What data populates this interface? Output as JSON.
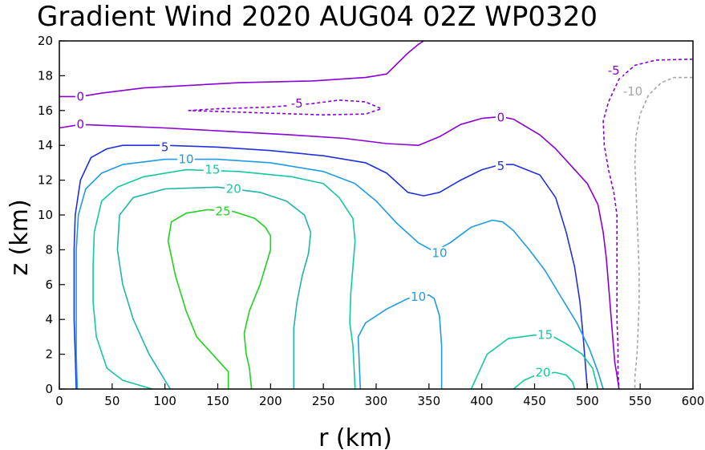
{
  "chart_data": {
    "type": "contour",
    "title": "Gradient Wind 2020 AUG04 02Z  WP0320",
    "xlabel": "r (km)",
    "ylabel": "z (km)",
    "xlim": [
      0,
      600
    ],
    "ylim": [
      0,
      20
    ],
    "x_ticks": [
      0,
      50,
      100,
      150,
      200,
      250,
      300,
      350,
      400,
      450,
      500,
      550,
      600
    ],
    "y_ticks": [
      0,
      2,
      4,
      6,
      8,
      10,
      12,
      14,
      16,
      18,
      20
    ],
    "grid": false,
    "contours": [
      {
        "level": 0,
        "color": "#8a00d4",
        "dashed": false,
        "points": [
          [
            0,
            16.8
          ],
          [
            20,
            16.8
          ],
          [
            40,
            17.0
          ],
          [
            80,
            17.3
          ],
          [
            110,
            17.4
          ],
          [
            170,
            17.6
          ],
          [
            240,
            17.7
          ],
          [
            290,
            17.9
          ],
          [
            300,
            18.0
          ],
          [
            310,
            18.1
          ],
          [
            330,
            19.3
          ],
          [
            340,
            19.8
          ],
          [
            345,
            20.0
          ]
        ]
      },
      {
        "level": 0,
        "color": "#8a00d4",
        "dashed": false,
        "points": [
          [
            0,
            15.0
          ],
          [
            20,
            15.2
          ],
          [
            60,
            15.1
          ],
          [
            100,
            15.0
          ],
          [
            160,
            14.8
          ],
          [
            220,
            14.6
          ],
          [
            270,
            14.4
          ],
          [
            310,
            14.1
          ],
          [
            340,
            14.0
          ],
          [
            360,
            14.5
          ],
          [
            380,
            15.2
          ],
          [
            400,
            15.55
          ],
          [
            418,
            15.65
          ],
          [
            430,
            15.5
          ],
          [
            455,
            14.6
          ],
          [
            470,
            13.8
          ],
          [
            485,
            12.8
          ],
          [
            500,
            11.8
          ],
          [
            510,
            10.6
          ],
          [
            515,
            9.0
          ],
          [
            518,
            7.5
          ],
          [
            520,
            6.0
          ],
          [
            522,
            4.5
          ],
          [
            524,
            3.0
          ],
          [
            526,
            1.5
          ],
          [
            528,
            0.8
          ],
          [
            530,
            0.0
          ]
        ]
      },
      {
        "level": -5,
        "color": "#8a00d4",
        "dashed": true,
        "points": [
          [
            122,
            16.0
          ],
          [
            150,
            16.1
          ],
          [
            200,
            16.2
          ],
          [
            240,
            16.4
          ],
          [
            265,
            16.6
          ],
          [
            290,
            16.5
          ],
          [
            305,
            16.1
          ],
          [
            290,
            15.8
          ],
          [
            250,
            15.75
          ],
          [
            200,
            15.85
          ],
          [
            150,
            15.95
          ],
          [
            122,
            16.0
          ]
        ]
      },
      {
        "level": -5,
        "color": "#8a00d4",
        "dashed": true,
        "points": [
          [
            600,
            18.95
          ],
          [
            565,
            18.9
          ],
          [
            545,
            18.6
          ],
          [
            530,
            17.8
          ],
          [
            520,
            16.5
          ],
          [
            515,
            15.4
          ],
          [
            516,
            14.0
          ],
          [
            520,
            12.6
          ],
          [
            525,
            11.3
          ],
          [
            528,
            10.0
          ],
          [
            528,
            8.5
          ],
          [
            528,
            7.0
          ],
          [
            528,
            5.5
          ],
          [
            528,
            4.0
          ],
          [
            529,
            2.5
          ],
          [
            529,
            1.0
          ],
          [
            530,
            0.0
          ]
        ]
      },
      {
        "level": -10,
        "color": "#a6a6a6",
        "dashed": true,
        "points": [
          [
            600,
            17.9
          ],
          [
            582,
            17.9
          ],
          [
            570,
            17.6
          ],
          [
            558,
            16.9
          ],
          [
            550,
            15.8
          ],
          [
            546,
            14.5
          ],
          [
            545,
            13.0
          ],
          [
            546,
            11.5
          ],
          [
            547,
            10.0
          ],
          [
            548,
            8.5
          ],
          [
            549,
            6.8
          ],
          [
            549,
            5.0
          ],
          [
            548,
            3.3
          ],
          [
            547,
            2.0
          ],
          [
            545,
            0.7
          ],
          [
            545,
            0.0
          ]
        ]
      },
      {
        "level": 5,
        "color": "#1e32dc",
        "dashed": false,
        "points": [
          [
            16,
            0.0
          ],
          [
            15,
            2.0
          ],
          [
            14,
            4.0
          ],
          [
            14,
            6.0
          ],
          [
            14,
            8.0
          ],
          [
            15,
            10.0
          ],
          [
            20,
            12.0
          ],
          [
            30,
            13.3
          ],
          [
            45,
            13.8
          ],
          [
            60,
            14.0
          ],
          [
            100,
            14.0
          ],
          [
            150,
            13.9
          ],
          [
            200,
            13.7
          ],
          [
            250,
            13.4
          ],
          [
            290,
            13.0
          ],
          [
            310,
            12.4
          ],
          [
            330,
            11.3
          ],
          [
            345,
            11.1
          ],
          [
            360,
            11.3
          ],
          [
            380,
            12.0
          ],
          [
            400,
            12.6
          ],
          [
            418,
            12.9
          ],
          [
            430,
            12.9
          ],
          [
            455,
            12.3
          ],
          [
            470,
            11.0
          ],
          [
            480,
            9.0
          ],
          [
            488,
            7.0
          ],
          [
            493,
            5.0
          ],
          [
            496,
            3.0
          ],
          [
            498,
            1.5
          ],
          [
            500,
            0.0
          ]
        ]
      },
      {
        "level": 10,
        "color": "#1e9be6",
        "dashed": false,
        "points": [
          [
            17,
            0.0
          ],
          [
            16,
            2.0
          ],
          [
            16,
            4.0
          ],
          [
            16,
            6.0
          ],
          [
            16,
            8.0
          ],
          [
            18,
            10.0
          ],
          [
            25,
            11.5
          ],
          [
            40,
            12.4
          ],
          [
            60,
            12.9
          ],
          [
            100,
            13.2
          ],
          [
            150,
            13.2
          ],
          [
            200,
            13.0
          ],
          [
            250,
            12.5
          ],
          [
            280,
            11.8
          ],
          [
            300,
            10.8
          ],
          [
            320,
            9.5
          ],
          [
            340,
            8.4
          ],
          [
            355,
            7.9
          ],
          [
            370,
            8.4
          ],
          [
            390,
            9.3
          ],
          [
            410,
            9.7
          ],
          [
            420,
            9.6
          ],
          [
            430,
            9.1
          ],
          [
            445,
            8.0
          ],
          [
            460,
            6.8
          ],
          [
            475,
            5.3
          ],
          [
            490,
            3.8
          ],
          [
            502,
            2.3
          ],
          [
            510,
            1.0
          ],
          [
            515,
            0.0
          ]
        ]
      },
      {
        "level": 10,
        "color": "#1e9be6",
        "dashed": false,
        "points": [
          [
            285,
            0.0
          ],
          [
            284,
            1.5
          ],
          [
            283,
            3.0
          ],
          [
            290,
            3.8
          ],
          [
            310,
            4.6
          ],
          [
            330,
            5.2
          ],
          [
            350,
            5.4
          ],
          [
            355,
            5.2
          ],
          [
            360,
            4.2
          ],
          [
            362,
            2.5
          ],
          [
            362,
            1.0
          ],
          [
            362,
            0.0
          ]
        ]
      },
      {
        "level": 15,
        "color": "#14c8a0",
        "dashed": false,
        "points": [
          [
            88,
            0.0
          ],
          [
            60,
            0.5
          ],
          [
            45,
            1.2
          ],
          [
            35,
            3.0
          ],
          [
            32,
            5.0
          ],
          [
            32,
            7.0
          ],
          [
            33,
            9.0
          ],
          [
            40,
            10.8
          ],
          [
            55,
            11.6
          ],
          [
            80,
            12.2
          ],
          [
            120,
            12.6
          ],
          [
            170,
            12.5
          ],
          [
            220,
            12.2
          ],
          [
            250,
            11.8
          ],
          [
            265,
            11.0
          ],
          [
            278,
            9.8
          ],
          [
            280,
            8.5
          ],
          [
            278,
            7.0
          ],
          [
            276,
            5.5
          ],
          [
            275,
            3.8
          ],
          [
            278,
            2.5
          ],
          [
            279,
            1.3
          ],
          [
            280,
            0.0
          ]
        ]
      },
      {
        "level": 15,
        "color": "#14c8a0",
        "dashed": false,
        "points": [
          [
            390,
            0.0
          ],
          [
            405,
            2.0
          ],
          [
            425,
            2.9
          ],
          [
            450,
            3.1
          ],
          [
            468,
            3.0
          ],
          [
            480,
            2.6
          ],
          [
            495,
            2.0
          ],
          [
            505,
            1.2
          ],
          [
            510,
            0.0
          ]
        ]
      },
      {
        "level": 20,
        "color": "#1eb4aa",
        "dashed": false,
        "points": [
          [
            105,
            0.0
          ],
          [
            85,
            2.0
          ],
          [
            70,
            4.0
          ],
          [
            60,
            6.0
          ],
          [
            55,
            8.0
          ],
          [
            57,
            10.0
          ],
          [
            70,
            11.0
          ],
          [
            100,
            11.5
          ],
          [
            150,
            11.6
          ],
          [
            190,
            11.3
          ],
          [
            215,
            10.8
          ],
          [
            232,
            10.0
          ],
          [
            238,
            9.0
          ],
          [
            236,
            7.8
          ],
          [
            230,
            6.5
          ],
          [
            225,
            5.0
          ],
          [
            222,
            3.5
          ],
          [
            222,
            2.5
          ],
          [
            222,
            1.0
          ],
          [
            222,
            0.0
          ]
        ]
      },
      {
        "level": 20,
        "color": "#14c8a0",
        "dashed": false,
        "points": [
          [
            430,
            0.0
          ],
          [
            440,
            0.5
          ],
          [
            455,
            0.9
          ],
          [
            470,
            0.95
          ],
          [
            480,
            0.8
          ],
          [
            486,
            0.4
          ],
          [
            488,
            0.0
          ]
        ]
      },
      {
        "level": 25,
        "color": "#1ed21e",
        "dashed": false,
        "points": [
          [
            160,
            0.0
          ],
          [
            160,
            1.0
          ],
          [
            145,
            2.0
          ],
          [
            130,
            3.0
          ],
          [
            120,
            4.5
          ],
          [
            110,
            6.5
          ],
          [
            103,
            8.5
          ],
          [
            106,
            9.6
          ],
          [
            120,
            10.1
          ],
          [
            140,
            10.3
          ],
          [
            165,
            10.2
          ],
          [
            185,
            9.8
          ],
          [
            195,
            9.3
          ],
          [
            200,
            8.8
          ],
          [
            200,
            8.0
          ],
          [
            195,
            7.0
          ],
          [
            190,
            6.0
          ],
          [
            180,
            4.5
          ],
          [
            175,
            3.2
          ],
          [
            177,
            2.0
          ],
          [
            180,
            1.2
          ],
          [
            182,
            0.0
          ]
        ]
      }
    ],
    "contour_labels": [
      {
        "text": "0",
        "x": 20,
        "y": 16.8,
        "color": "#8a00d4"
      },
      {
        "text": "0",
        "x": 20,
        "y": 15.2,
        "color": "#8a00d4"
      },
      {
        "text": "-5",
        "x": 225,
        "y": 16.4,
        "color": "#8a00d4"
      },
      {
        "text": "0",
        "x": 418,
        "y": 15.6,
        "color": "#8a00d4"
      },
      {
        "text": "-5",
        "x": 525,
        "y": 18.3,
        "color": "#8a00d4"
      },
      {
        "text": "-10",
        "x": 543,
        "y": 17.1,
        "color": "#a6a6a6"
      },
      {
        "text": "5",
        "x": 100,
        "y": 13.9,
        "color": "#1e32dc"
      },
      {
        "text": "5",
        "x": 418,
        "y": 12.8,
        "color": "#1e32dc"
      },
      {
        "text": "10",
        "x": 120,
        "y": 13.2,
        "color": "#1e9be6"
      },
      {
        "text": "10",
        "x": 360,
        "y": 7.8,
        "color": "#1e9be6"
      },
      {
        "text": "10",
        "x": 340,
        "y": 5.3,
        "color": "#1e9be6"
      },
      {
        "text": "15",
        "x": 145,
        "y": 12.6,
        "color": "#14c8a0"
      },
      {
        "text": "15",
        "x": 460,
        "y": 3.1,
        "color": "#14c8a0"
      },
      {
        "text": "20",
        "x": 165,
        "y": 11.5,
        "color": "#14c8a0"
      },
      {
        "text": "20",
        "x": 458,
        "y": 0.95,
        "color": "#14c8a0"
      },
      {
        "text": "25",
        "x": 155,
        "y": 10.2,
        "color": "#1ed21e"
      }
    ]
  }
}
